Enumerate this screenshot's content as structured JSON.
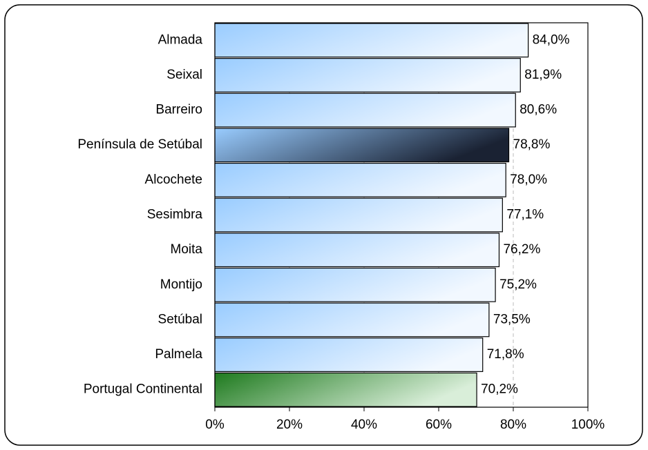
{
  "chart_data": {
    "type": "bar",
    "orientation": "horizontal",
    "categories": [
      "Almada",
      "Seixal",
      "Barreiro",
      "Península de Setúbal",
      "Alcochete",
      "Sesimbra",
      "Moita",
      "Montijo",
      "Setúbal",
      "Palmela",
      "Portugal Continental"
    ],
    "values": [
      84.0,
      81.9,
      80.6,
      78.8,
      78.0,
      77.1,
      76.2,
      75.2,
      73.5,
      71.8,
      70.2
    ],
    "value_labels": [
      "84,0%",
      "81,9%",
      "80,6%",
      "78,8%",
      "78,0%",
      "77,1%",
      "76,2%",
      "75,2%",
      "73,5%",
      "71,8%",
      "70,2%"
    ],
    "colors": [
      [
        "#99ccff",
        "#f2f8ff"
      ],
      [
        "#99ccff",
        "#f2f8ff"
      ],
      [
        "#99ccff",
        "#f2f8ff"
      ],
      [
        "#99ccff",
        "#1a2233"
      ],
      [
        "#99ccff",
        "#f2f8ff"
      ],
      [
        "#99ccff",
        "#f2f8ff"
      ],
      [
        "#99ccff",
        "#f2f8ff"
      ],
      [
        "#99ccff",
        "#f2f8ff"
      ],
      [
        "#99ccff",
        "#f2f8ff"
      ],
      [
        "#99ccff",
        "#f2f8ff"
      ],
      [
        "#1e7a1e",
        "#d9eed9"
      ]
    ],
    "label_colors": [
      "#333399",
      "#333399",
      "#333399",
      "#333399",
      "#333399",
      "#333399",
      "#333399",
      "#333399",
      "#333399",
      "#333399",
      "#1a8a1a"
    ],
    "xlim": [
      0,
      100
    ],
    "xticks": [
      {
        "value": 0,
        "label": "0%"
      },
      {
        "value": 20,
        "label": "20%"
      },
      {
        "value": 40,
        "label": "40%"
      },
      {
        "value": 60,
        "label": "60%"
      },
      {
        "value": 80,
        "label": "80%"
      },
      {
        "value": 100,
        "label": "100%"
      }
    ],
    "grid": true
  }
}
